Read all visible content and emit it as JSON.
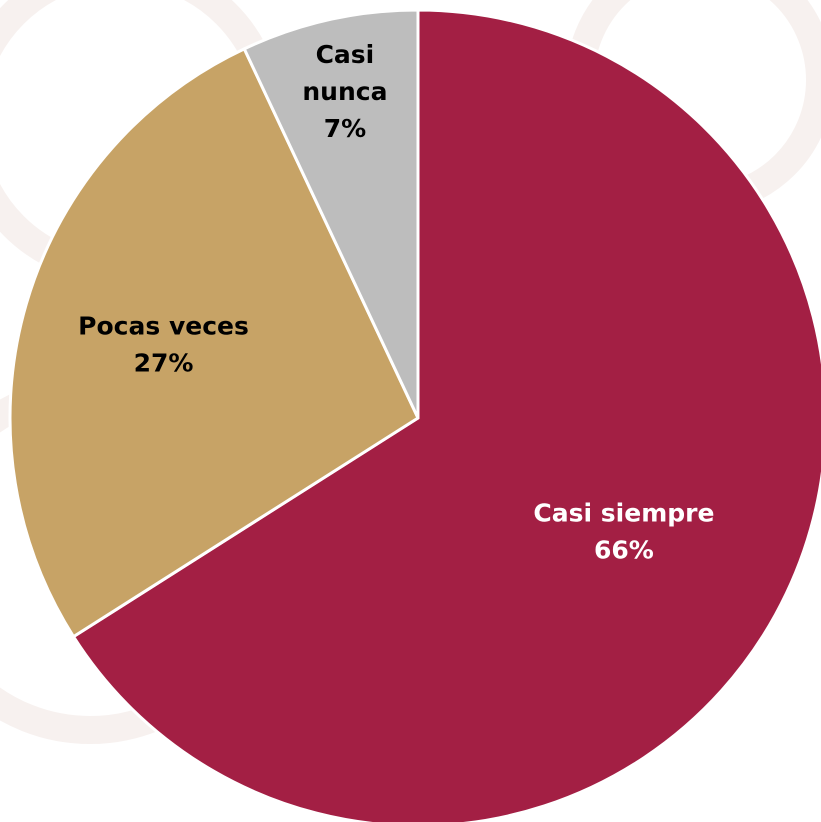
{
  "chart_data": {
    "type": "pie",
    "title": "",
    "start_angle_deg": 0,
    "direction": "clockwise",
    "slices": [
      {
        "label_lines": [
          "Casi siempre"
        ],
        "value_label": "66%",
        "value": 66,
        "color": "#A31F44",
        "text_color": "#FFFFFF"
      },
      {
        "label_lines": [
          "Pocas veces"
        ],
        "value_label": "27%",
        "value": 27,
        "color": "#C7A366",
        "text_color": "#000000"
      },
      {
        "label_lines": [
          "Casi",
          "nunca"
        ],
        "value_label": "7%",
        "value": 7,
        "color": "#BDBDBD",
        "text_color": "#000000"
      }
    ],
    "background_watermark_color": "#F7F1EF",
    "slice_border_color": "#FFFFFF"
  }
}
